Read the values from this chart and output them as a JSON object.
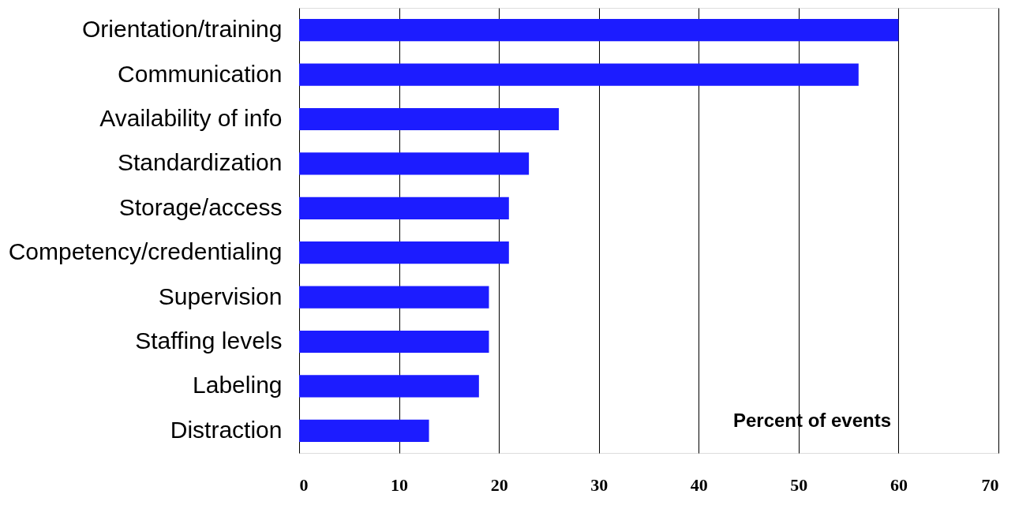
{
  "chart_data": {
    "type": "bar",
    "orientation": "horizontal",
    "xlabel": "Percent of events",
    "categories": [
      "Orientation/training",
      "Communication",
      "Availability of info",
      "Standardization",
      "Storage/access",
      "Competency/credentialing",
      "Supervision",
      "Staffing levels",
      "Labeling",
      "Distraction"
    ],
    "values": [
      60,
      56,
      26,
      23,
      21,
      21,
      19,
      19,
      18,
      13
    ],
    "color": "#1c1cff",
    "xlim": [
      0,
      70
    ],
    "xticks": [
      0,
      10,
      20,
      30,
      40,
      50,
      60,
      70
    ],
    "grid": "x"
  }
}
